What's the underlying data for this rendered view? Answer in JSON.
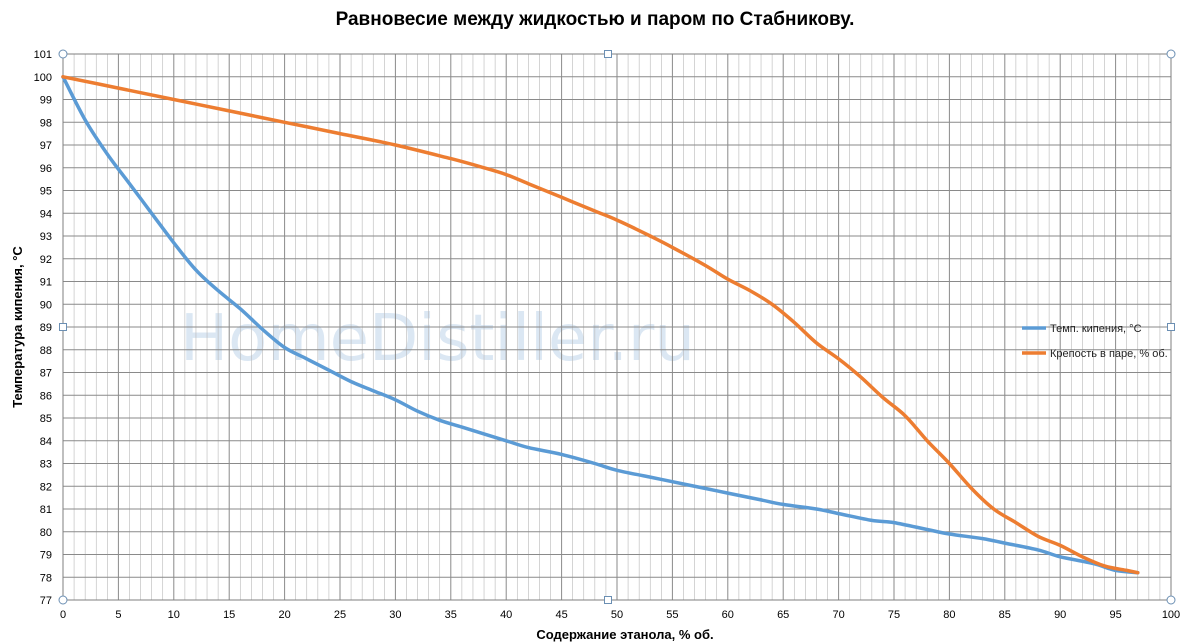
{
  "watermark": "HomeDistiller.ru",
  "chart_data": {
    "type": "line",
    "title": "Равновесие между жидкостью и паром по Стабникову.",
    "xlabel": "Содержание этанола, % об.",
    "ylabel": "Температура кипения, °С",
    "xlim": [
      0,
      100
    ],
    "ylim": [
      77,
      101
    ],
    "x_ticks": [
      0,
      5,
      10,
      15,
      20,
      25,
      30,
      35,
      40,
      45,
      50,
      55,
      60,
      65,
      70,
      75,
      80,
      85,
      90,
      95,
      100
    ],
    "y_ticks": [
      77,
      78,
      79,
      80,
      81,
      82,
      83,
      84,
      85,
      86,
      87,
      88,
      89,
      90,
      91,
      92,
      93,
      94,
      95,
      96,
      97,
      98,
      99,
      100,
      101
    ],
    "grid": true,
    "legend_position": "right",
    "series": [
      {
        "name": "Темп. кипения, °С",
        "color": "#5b9bd5",
        "x": [
          0,
          2,
          4,
          6,
          8,
          10,
          12,
          14,
          16,
          18,
          20,
          22,
          24,
          26,
          28,
          30,
          32,
          34,
          36,
          38,
          40,
          42,
          45,
          48,
          50,
          53,
          55,
          58,
          60,
          63,
          65,
          68,
          70,
          73,
          75,
          78,
          80,
          83,
          85,
          88,
          90,
          93,
          95,
          97
        ],
        "y": [
          100,
          98.1,
          96.6,
          95.3,
          94.0,
          92.7,
          91.5,
          90.6,
          89.8,
          88.9,
          88.1,
          87.6,
          87.1,
          86.6,
          86.2,
          85.8,
          85.3,
          84.9,
          84.6,
          84.3,
          84.0,
          83.7,
          83.4,
          83.0,
          82.7,
          82.4,
          82.2,
          81.9,
          81.7,
          81.4,
          81.2,
          81.0,
          80.8,
          80.5,
          80.4,
          80.1,
          79.9,
          79.7,
          79.5,
          79.2,
          78.9,
          78.6,
          78.3,
          78.2
        ]
      },
      {
        "name": "Крепость в паре, % об.",
        "color": "#ed7d31",
        "x": [
          0,
          5,
          10,
          15,
          20,
          25,
          30,
          35,
          38,
          40,
          42,
          45,
          48,
          50,
          53,
          55,
          58,
          60,
          62,
          64,
          66,
          68,
          70,
          72,
          74,
          76,
          78,
          80,
          82,
          84,
          86,
          88,
          90,
          92,
          94,
          96,
          97
        ],
        "y": [
          100,
          99.5,
          99.0,
          98.5,
          98.0,
          97.5,
          97.0,
          96.4,
          96.0,
          95.7,
          95.3,
          94.7,
          94.1,
          93.7,
          93.0,
          92.5,
          91.7,
          91.1,
          90.6,
          90.0,
          89.2,
          88.3,
          87.6,
          86.8,
          85.9,
          85.1,
          84.0,
          83.0,
          81.9,
          81.0,
          80.4,
          79.8,
          79.4,
          78.9,
          78.5,
          78.3,
          78.2
        ]
      }
    ]
  }
}
